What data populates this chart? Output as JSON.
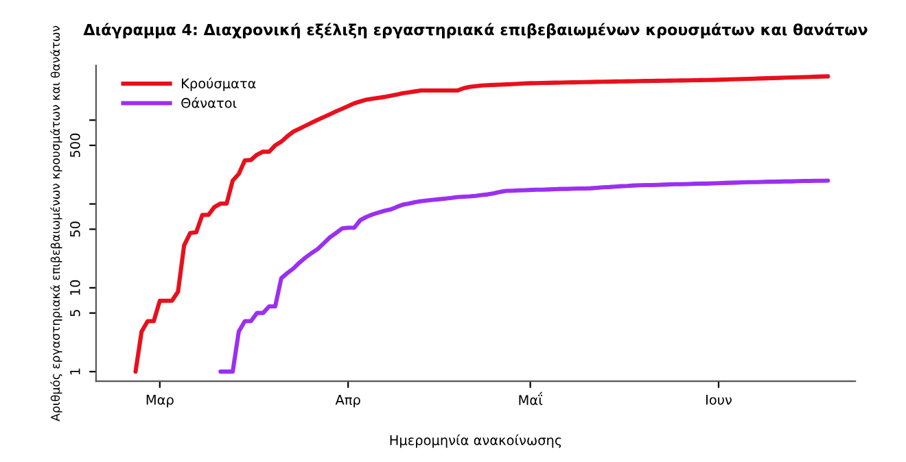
{
  "chart_data": {
    "type": "line",
    "title": "Διάγραμμα 4: Διαχρονική εξέλιξη εργαστηριακά επιβεβαιωμένων κρουσμάτων και θανάτων",
    "xlabel": "Ημερομηνία ανακοίνωσης",
    "ylabel": "Αριθμός εργαστηριακά επιβεβαιωμένων κρουσμάτων και θανάτων",
    "categories": [
      null,
      null,
      null,
      null,
      null,
      null,
      null,
      null,
      null,
      null,
      "Μαρ",
      null,
      null,
      null,
      null,
      null,
      null,
      null,
      null,
      null,
      null,
      null,
      null,
      null,
      null,
      null,
      null,
      null,
      null,
      null,
      null,
      null,
      null,
      null,
      null,
      null,
      null,
      null,
      null,
      null,
      null,
      "Απρ",
      null,
      null,
      null,
      null,
      null,
      null,
      null,
      null,
      null,
      null,
      null,
      null,
      null,
      null,
      null,
      null,
      null,
      null,
      null,
      null,
      null,
      null,
      null,
      null,
      null,
      null,
      null,
      null,
      null,
      "Μαΐ",
      null,
      null,
      null,
      null,
      null,
      null,
      null,
      null,
      null,
      null,
      null,
      null,
      null,
      null,
      null,
      null,
      null,
      null,
      null,
      null,
      null,
      null,
      null,
      null,
      null,
      null,
      null,
      null,
      null,
      null,
      "Ιουν",
      null,
      null,
      null,
      null,
      null,
      null,
      null,
      null,
      null,
      null,
      null,
      null,
      null,
      null,
      null,
      null,
      null,
      null,
      null,
      null,
      null,
      null
    ],
    "series": [
      {
        "name": "Κρούσματα",
        "color": "#e8101c",
        "values": [
          null,
          null,
          null,
          null,
          null,
          null,
          1,
          3,
          4,
          4,
          7,
          7,
          7,
          9,
          32,
          45,
          46,
          74,
          74,
          92,
          101,
          101,
          190,
          228,
          331,
          335,
          387,
          420,
          420,
          500,
          553,
          643,
          729,
          790,
          858,
          930,
          1010,
          1090,
          1175,
          1270,
          1366,
          1470,
          1585,
          1670,
          1754,
          1800,
          1846,
          1892,
          1955,
          2020,
          2092,
          2145,
          2200,
          2255,
          2255,
          2255,
          2255,
          2255,
          2255,
          2255,
          2400,
          2494,
          2540,
          2590,
          2610,
          2630,
          2650,
          2670,
          2690,
          2710,
          2735,
          2757,
          2766,
          2776,
          2785,
          2794,
          2804,
          2813,
          2823,
          2832,
          2841,
          2851,
          2860,
          2870,
          2879,
          2888,
          2898,
          2906,
          2913,
          2921,
          2929,
          2936,
          2944,
          2952,
          2959,
          2967,
          2975,
          2982,
          2990,
          2998,
          3005,
          3013,
          3029,
          3045,
          3061,
          3077,
          3094,
          3110,
          3126,
          3143,
          3160,
          3176,
          3193,
          3210,
          3227,
          3243,
          3260,
          3277,
          3294,
          3310,
          3327,
          null,
          null,
          null,
          null
        ]
      },
      {
        "name": "Θάνατοι",
        "color": "#9b30f0",
        "values": [
          null,
          null,
          null,
          null,
          null,
          null,
          null,
          null,
          null,
          null,
          null,
          null,
          null,
          null,
          null,
          null,
          null,
          null,
          null,
          null,
          1,
          1,
          1,
          3,
          4,
          4,
          5,
          5,
          6,
          6,
          13,
          15,
          17,
          20,
          23,
          26,
          29,
          34,
          40,
          45,
          51,
          52,
          52,
          64,
          70,
          75,
          79,
          83,
          86,
          92,
          98,
          101,
          105,
          108,
          110,
          112,
          114,
          116,
          118,
          121,
          122,
          123,
          125,
          128,
          130,
          134,
          139,
          143,
          144,
          145,
          146,
          147,
          148,
          148,
          149,
          150,
          151,
          151,
          152,
          153,
          153,
          154,
          156,
          158,
          159,
          161,
          163,
          164,
          166,
          167,
          168,
          168,
          169,
          170,
          171,
          172,
          172,
          173,
          174,
          175,
          175,
          176,
          177,
          178,
          179,
          180,
          181,
          182,
          182,
          183,
          184,
          184,
          185,
          186,
          186,
          187,
          188,
          188,
          189,
          189,
          190,
          null,
          null,
          null,
          null
        ]
      }
    ],
    "log": "y",
    "ylim": [
      0.77,
      4470
    ],
    "yticks": [
      1,
      5,
      10,
      50,
      {
        "value": 100,
        "label": null
      },
      500,
      {
        "value": 1000,
        "label": null
      }
    ],
    "legend": "top left",
    "grid": false
  }
}
